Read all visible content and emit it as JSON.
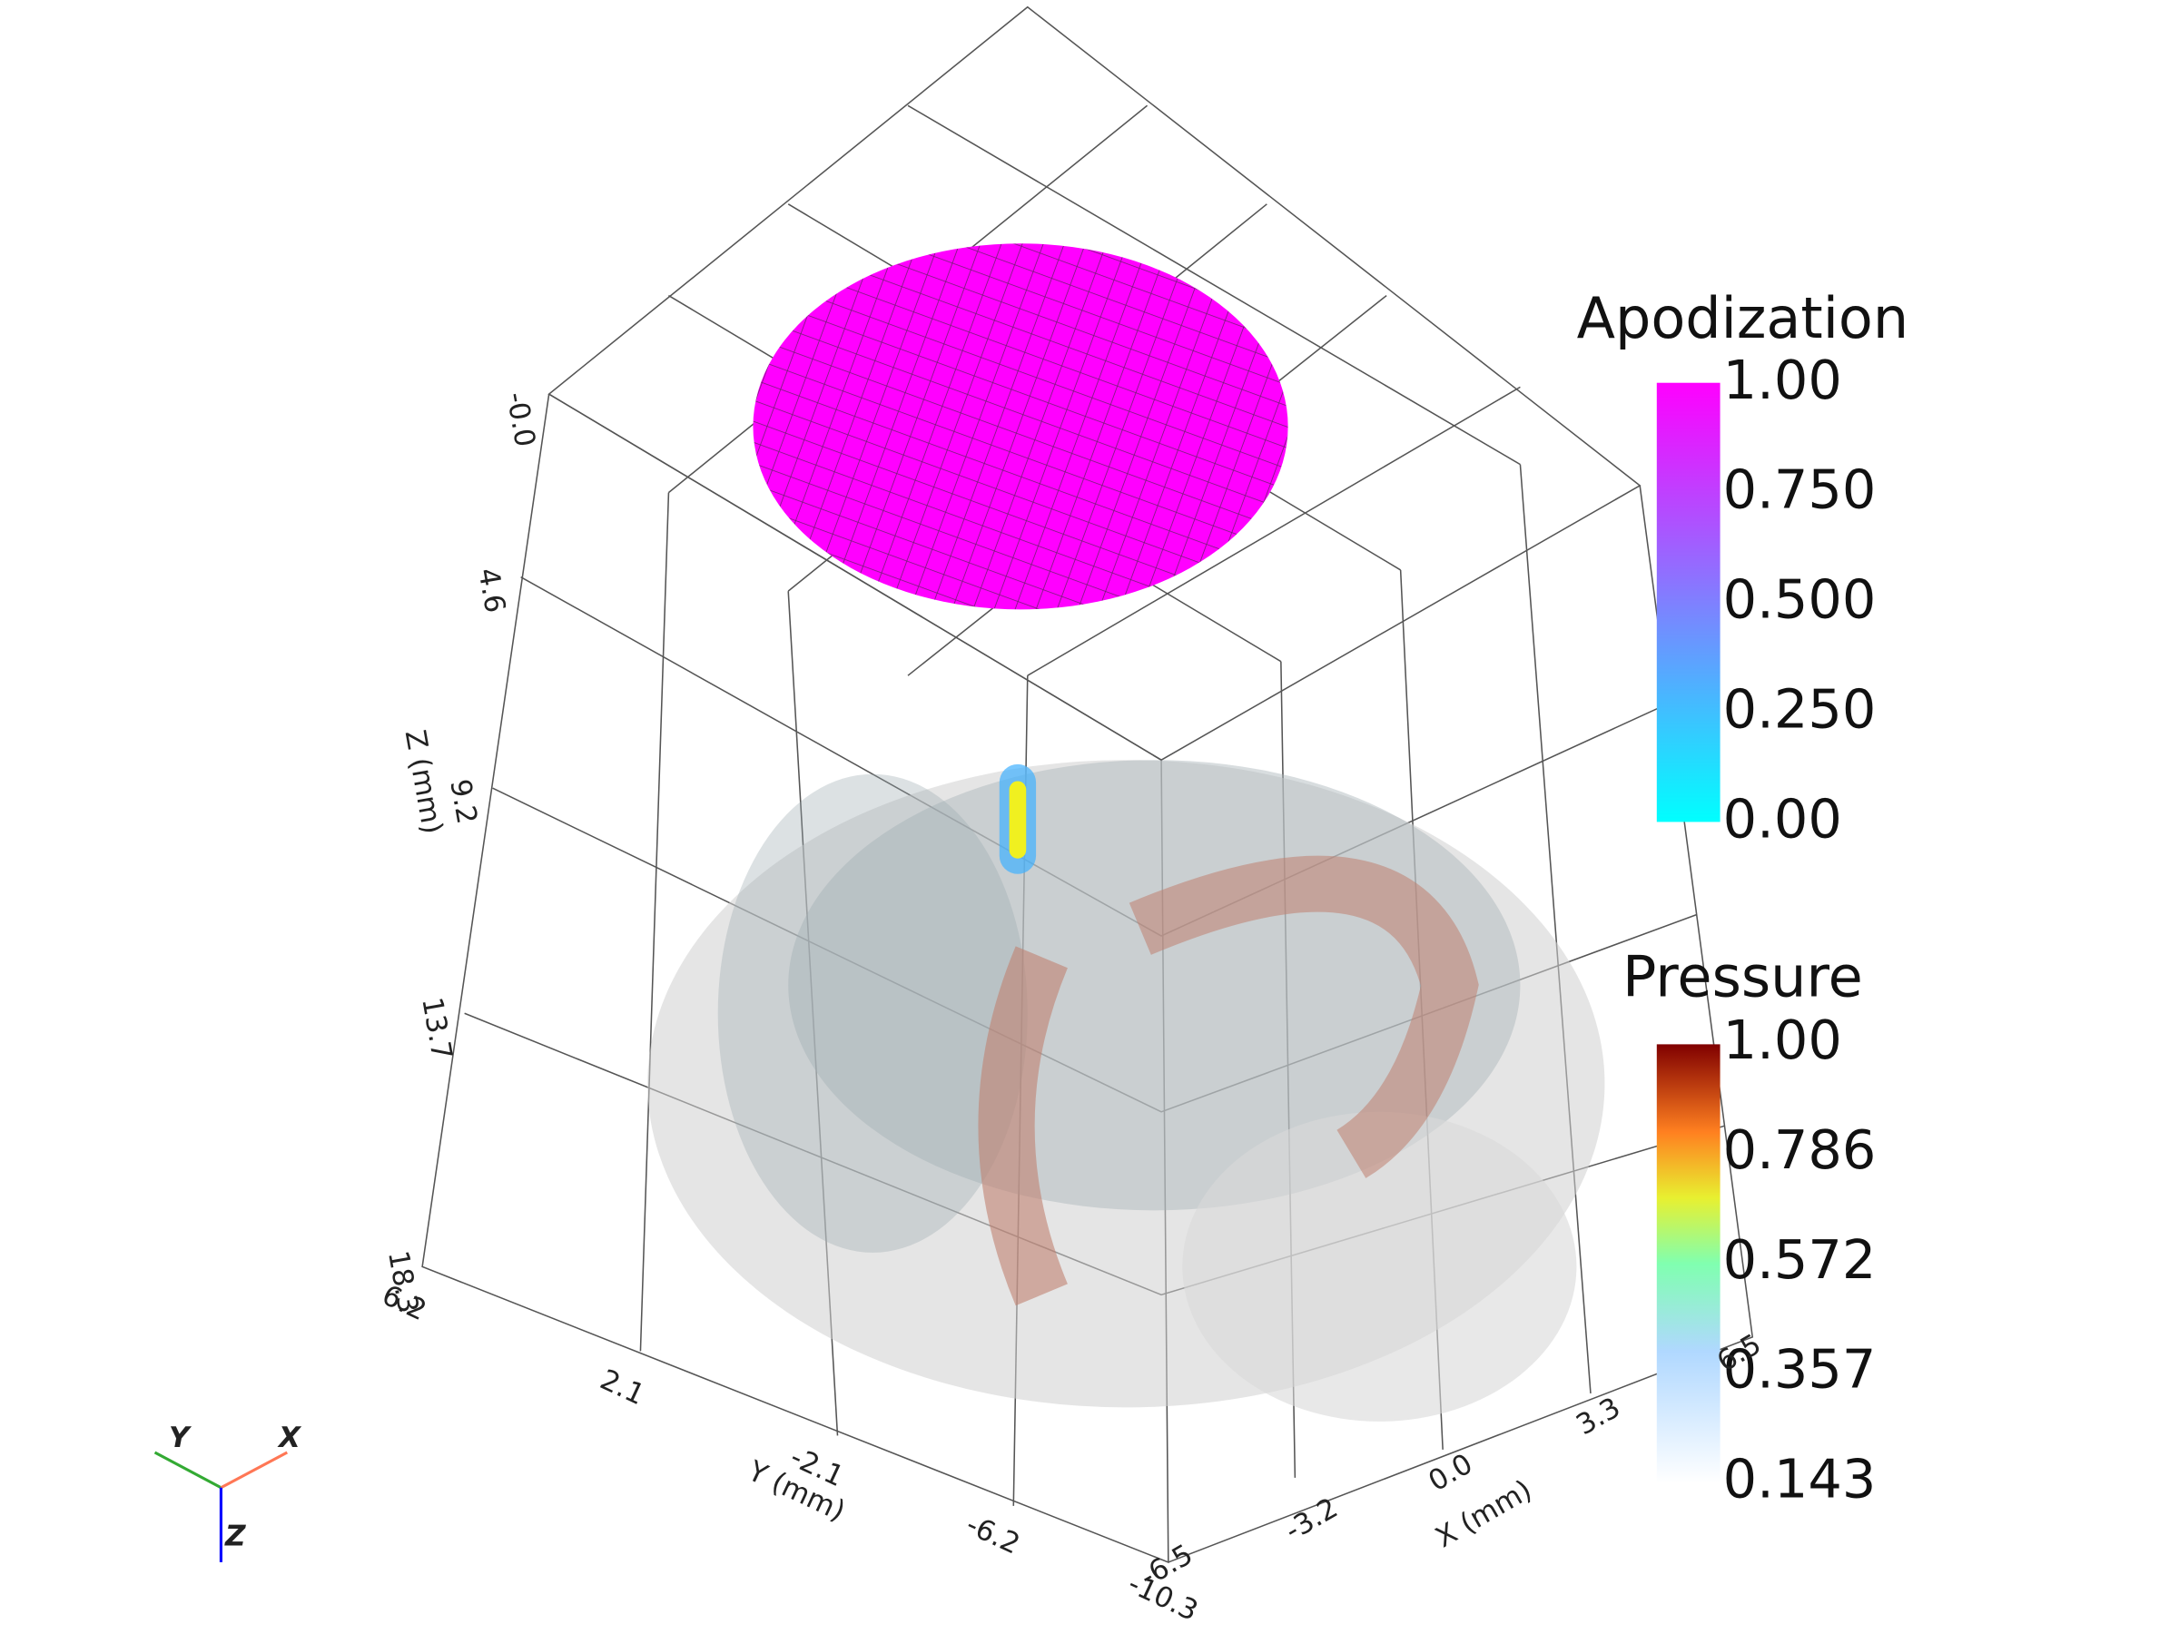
{
  "apodization_bar": {
    "title": "Apodization",
    "ticks": [
      "1.00",
      "0.750",
      "0.500",
      "0.250",
      "0.00"
    ]
  },
  "pressure_bar": {
    "title": "Pressure",
    "ticks": [
      "1.00",
      "0.786",
      "0.572",
      "0.357",
      "0.143"
    ]
  },
  "axes": {
    "z": {
      "title": "Z (mm)",
      "ticks": [
        "-0.0",
        "4.6",
        "9.2",
        "13.7",
        "18.3"
      ]
    },
    "y": {
      "title": "Y (mm)",
      "ticks": [
        "6.2",
        "2.1",
        "-2.1",
        "-6.2",
        "-10.3"
      ]
    },
    "x": {
      "title": "X (mm)",
      "ticks": [
        "-6.5",
        "-3.2",
        "0.0",
        "3.3",
        "6.5"
      ]
    }
  },
  "orientation": {
    "x": "X",
    "y": "Y",
    "z": "Z"
  }
}
